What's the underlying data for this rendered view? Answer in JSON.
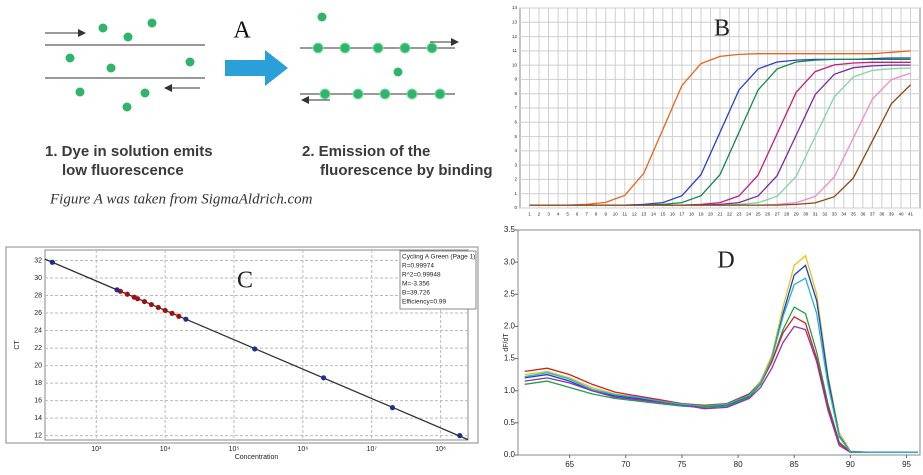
{
  "figure_a": {
    "label": "A",
    "step1": [
      "1. Dye in solution emits",
      "low fluorescence"
    ],
    "step2": [
      "2. Emission of the",
      "fluorescence by binding"
    ],
    "caption": "Figure A was taken from SigmaAldrich.com"
  },
  "chart_data": [
    {
      "type": "line",
      "title": "B",
      "x": [
        1,
        3,
        5,
        7,
        9,
        11,
        13,
        15,
        17,
        19,
        21,
        23,
        25,
        27,
        29,
        31,
        33,
        35,
        37,
        39,
        41
      ],
      "series": [
        {
          "color": "#e8641c",
          "values": [
            0.2,
            0.2,
            0.2,
            0.25,
            0.39,
            0.89,
            2.43,
            5.5,
            8.57,
            10.11,
            10.61,
            10.75,
            10.8,
            10.8,
            10.8,
            10.8,
            10.8,
            10.8,
            10.8,
            10.9,
            11
          ]
        },
        {
          "color": "#2a3fd0",
          "values": [
            0.2,
            0.2,
            0.2,
            0.2,
            0.2,
            0.2,
            0.25,
            0.38,
            0.86,
            2.34,
            5.3,
            8.26,
            9.74,
            10.22,
            10.35,
            10.4,
            10.4,
            10.4,
            10.45,
            10.5,
            10.5
          ]
        },
        {
          "color": "#138a4a",
          "values": [
            0.2,
            0.2,
            0.2,
            0.2,
            0.2,
            0.2,
            0.2,
            0.25,
            0.38,
            0.86,
            2.34,
            5.3,
            8.26,
            9.74,
            10.22,
            10.35,
            10.4,
            10.4,
            10.4,
            10.4,
            10.4
          ]
        },
        {
          "color": "#c0207a",
          "values": [
            0.2,
            0.2,
            0.2,
            0.2,
            0.2,
            0.2,
            0.2,
            0.2,
            0.2,
            0.25,
            0.38,
            0.85,
            2.3,
            5.2,
            8.1,
            9.55,
            10.02,
            10.15,
            10.2,
            10.2,
            10.2
          ]
        },
        {
          "color": "#7a2aa0",
          "values": [
            0.2,
            0.2,
            0.2,
            0.2,
            0.2,
            0.2,
            0.2,
            0.2,
            0.2,
            0.2,
            0.25,
            0.38,
            0.84,
            2.26,
            5.1,
            7.94,
            9.36,
            9.82,
            9.95,
            10,
            10
          ]
        },
        {
          "color": "#7ed6a0",
          "values": [
            0.2,
            0.2,
            0.2,
            0.2,
            0.2,
            0.2,
            0.2,
            0.2,
            0.2,
            0.2,
            0.2,
            0.25,
            0.37,
            0.82,
            2.22,
            5.0,
            7.78,
            9.18,
            9.63,
            9.75,
            9.8
          ]
        },
        {
          "color": "#f08ad0",
          "values": [
            0.2,
            0.2,
            0.2,
            0.2,
            0.2,
            0.2,
            0.2,
            0.2,
            0.2,
            0.2,
            0.2,
            0.2,
            0.2,
            0.25,
            0.37,
            0.81,
            2.17,
            4.9,
            7.63,
            8.99,
            9.43
          ]
        },
        {
          "color": "#8a4a10",
          "values": [
            0.2,
            0.2,
            0.2,
            0.2,
            0.2,
            0.2,
            0.2,
            0.2,
            0.2,
            0.2,
            0.2,
            0.2,
            0.2,
            0.2,
            0.25,
            0.36,
            0.79,
            2.09,
            4.7,
            7.31,
            8.62
          ]
        }
      ],
      "xlim": [
        0,
        42
      ],
      "ylim": [
        0,
        14
      ],
      "xticks": [
        1,
        2,
        3,
        4,
        5,
        6,
        7,
        8,
        9,
        10,
        11,
        12,
        13,
        14,
        15,
        16,
        17,
        18,
        19,
        20,
        21,
        22,
        23,
        24,
        25,
        26,
        27,
        28,
        29,
        30,
        31,
        32,
        33,
        34,
        35,
        36,
        37,
        38,
        39,
        40,
        41
      ],
      "yticks": [
        0,
        1,
        2,
        3,
        4,
        5,
        6,
        7,
        8,
        9,
        10,
        11,
        12,
        13,
        14
      ],
      "grid": true
    },
    {
      "type": "scatter",
      "title": "C",
      "x_label": "Concentration",
      "y_label": "CT",
      "xlog": true,
      "annotation": [
        "Cycling A Green (Page 1)",
        "R=0.99974",
        "R^2=0.99948",
        "M=-3.356",
        "B=39.726",
        "Efficiency=0.99"
      ],
      "series": [
        {
          "type": "line",
          "color": "#333333",
          "x": [
            180,
            250000000
          ],
          "values": [
            32.16,
            11.54
          ]
        },
        {
          "type": "scatter",
          "color": "#a01010",
          "x": [
            2240,
            2820,
            3550,
            3980,
            5010,
            6310,
            7940,
            10000,
            12600,
            15800
          ],
          "values": [
            28.48,
            28.15,
            27.81,
            27.64,
            27.31,
            26.97,
            26.64,
            26.3,
            25.97,
            25.63
          ]
        },
        {
          "type": "scatter",
          "color": "#1f2f8f",
          "x": [
            230,
            2000,
            20000,
            200000,
            2000000,
            20000000,
            190000000
          ],
          "values": [
            31.8,
            28.65,
            25.3,
            21.9,
            18.6,
            15.2,
            12.0
          ]
        }
      ],
      "xlim": [
        180,
        250000000
      ],
      "ylim": [
        11.5,
        33.2
      ],
      "xticks": [
        {
          "value": 1000,
          "label": "10³"
        },
        {
          "value": 10000,
          "label": "10⁴"
        },
        {
          "value": 100000,
          "label": "10⁵"
        },
        {
          "value": 1000000,
          "label": "10⁶"
        },
        {
          "value": 10000000,
          "label": "10⁷"
        },
        {
          "value": 100000000,
          "label": "10⁸"
        }
      ],
      "yticks": [
        12,
        14,
        16,
        18,
        20,
        22,
        24,
        26,
        28,
        30,
        32
      ],
      "grid": true
    },
    {
      "type": "line",
      "title": "D",
      "y_label": "dF/dT",
      "x": [
        61,
        63,
        65,
        67,
        69,
        71,
        73,
        75,
        77,
        79,
        81,
        82,
        83,
        84,
        85,
        86,
        87,
        88,
        89,
        90,
        92,
        94,
        96
      ],
      "series": [
        {
          "color": "#e8c020",
          "values": [
            1.25,
            1.3,
            1.2,
            1.05,
            0.95,
            0.9,
            0.85,
            0.8,
            0.78,
            0.8,
            0.95,
            1.15,
            1.55,
            2.3,
            2.95,
            3.1,
            2.5,
            1.25,
            0.35,
            0.06,
            0.04,
            0.04,
            0.04
          ]
        },
        {
          "color": "#2040c0",
          "values": [
            1.2,
            1.25,
            1.15,
            1.0,
            0.92,
            0.88,
            0.83,
            0.78,
            0.75,
            0.78,
            0.92,
            1.1,
            1.5,
            2.2,
            2.8,
            2.95,
            2.4,
            1.2,
            0.3,
            0.05,
            0.04,
            0.04,
            0.04
          ]
        },
        {
          "color": "#20a040",
          "values": [
            1.1,
            1.15,
            1.05,
            0.95,
            0.88,
            0.84,
            0.8,
            0.76,
            0.74,
            0.76,
            0.9,
            1.1,
            1.45,
            1.95,
            2.3,
            2.2,
            1.6,
            0.8,
            0.2,
            0.05,
            0.04,
            0.04,
            0.04
          ]
        },
        {
          "color": "#d02020",
          "values": [
            1.3,
            1.35,
            1.25,
            1.1,
            0.98,
            0.92,
            0.86,
            0.8,
            0.77,
            0.8,
            0.95,
            1.12,
            1.45,
            1.9,
            2.15,
            2.05,
            1.5,
            0.75,
            0.18,
            0.05,
            0.04,
            0.04,
            0.04
          ]
        },
        {
          "color": "#9030b0",
          "values": [
            1.15,
            1.2,
            1.12,
            1.0,
            0.9,
            0.86,
            0.82,
            0.78,
            0.72,
            0.74,
            0.88,
            1.05,
            1.35,
            1.75,
            2.0,
            1.95,
            1.45,
            0.7,
            0.15,
            0.04,
            0.04,
            0.04,
            0.04
          ]
        },
        {
          "color": "#20b8c8",
          "values": [
            1.22,
            1.28,
            1.18,
            1.02,
            0.94,
            0.9,
            0.84,
            0.79,
            0.76,
            0.79,
            0.93,
            1.12,
            1.5,
            2.15,
            2.65,
            2.75,
            2.2,
            1.1,
            0.28,
            0.05,
            0.04,
            0.04,
            0.04
          ]
        }
      ],
      "xlim": [
        60.4,
        96.2
      ],
      "ylim": [
        0,
        3.5
      ],
      "xticks": [
        65,
        70,
        75,
        80,
        85,
        90,
        95
      ],
      "yticks": [
        {
          "value": 0,
          "label": "0.0"
        },
        {
          "value": 0.5,
          "label": "0.5"
        },
        {
          "value": 1,
          "label": "1.0"
        },
        {
          "value": 1.5,
          "label": "1.5"
        },
        {
          "value": 2,
          "label": "2.0"
        },
        {
          "value": 2.5,
          "label": "2.5"
        },
        {
          "value": 3,
          "label": "3.0"
        },
        {
          "value": 3.5,
          "label": "3.5"
        }
      ],
      "grid": false
    }
  ]
}
